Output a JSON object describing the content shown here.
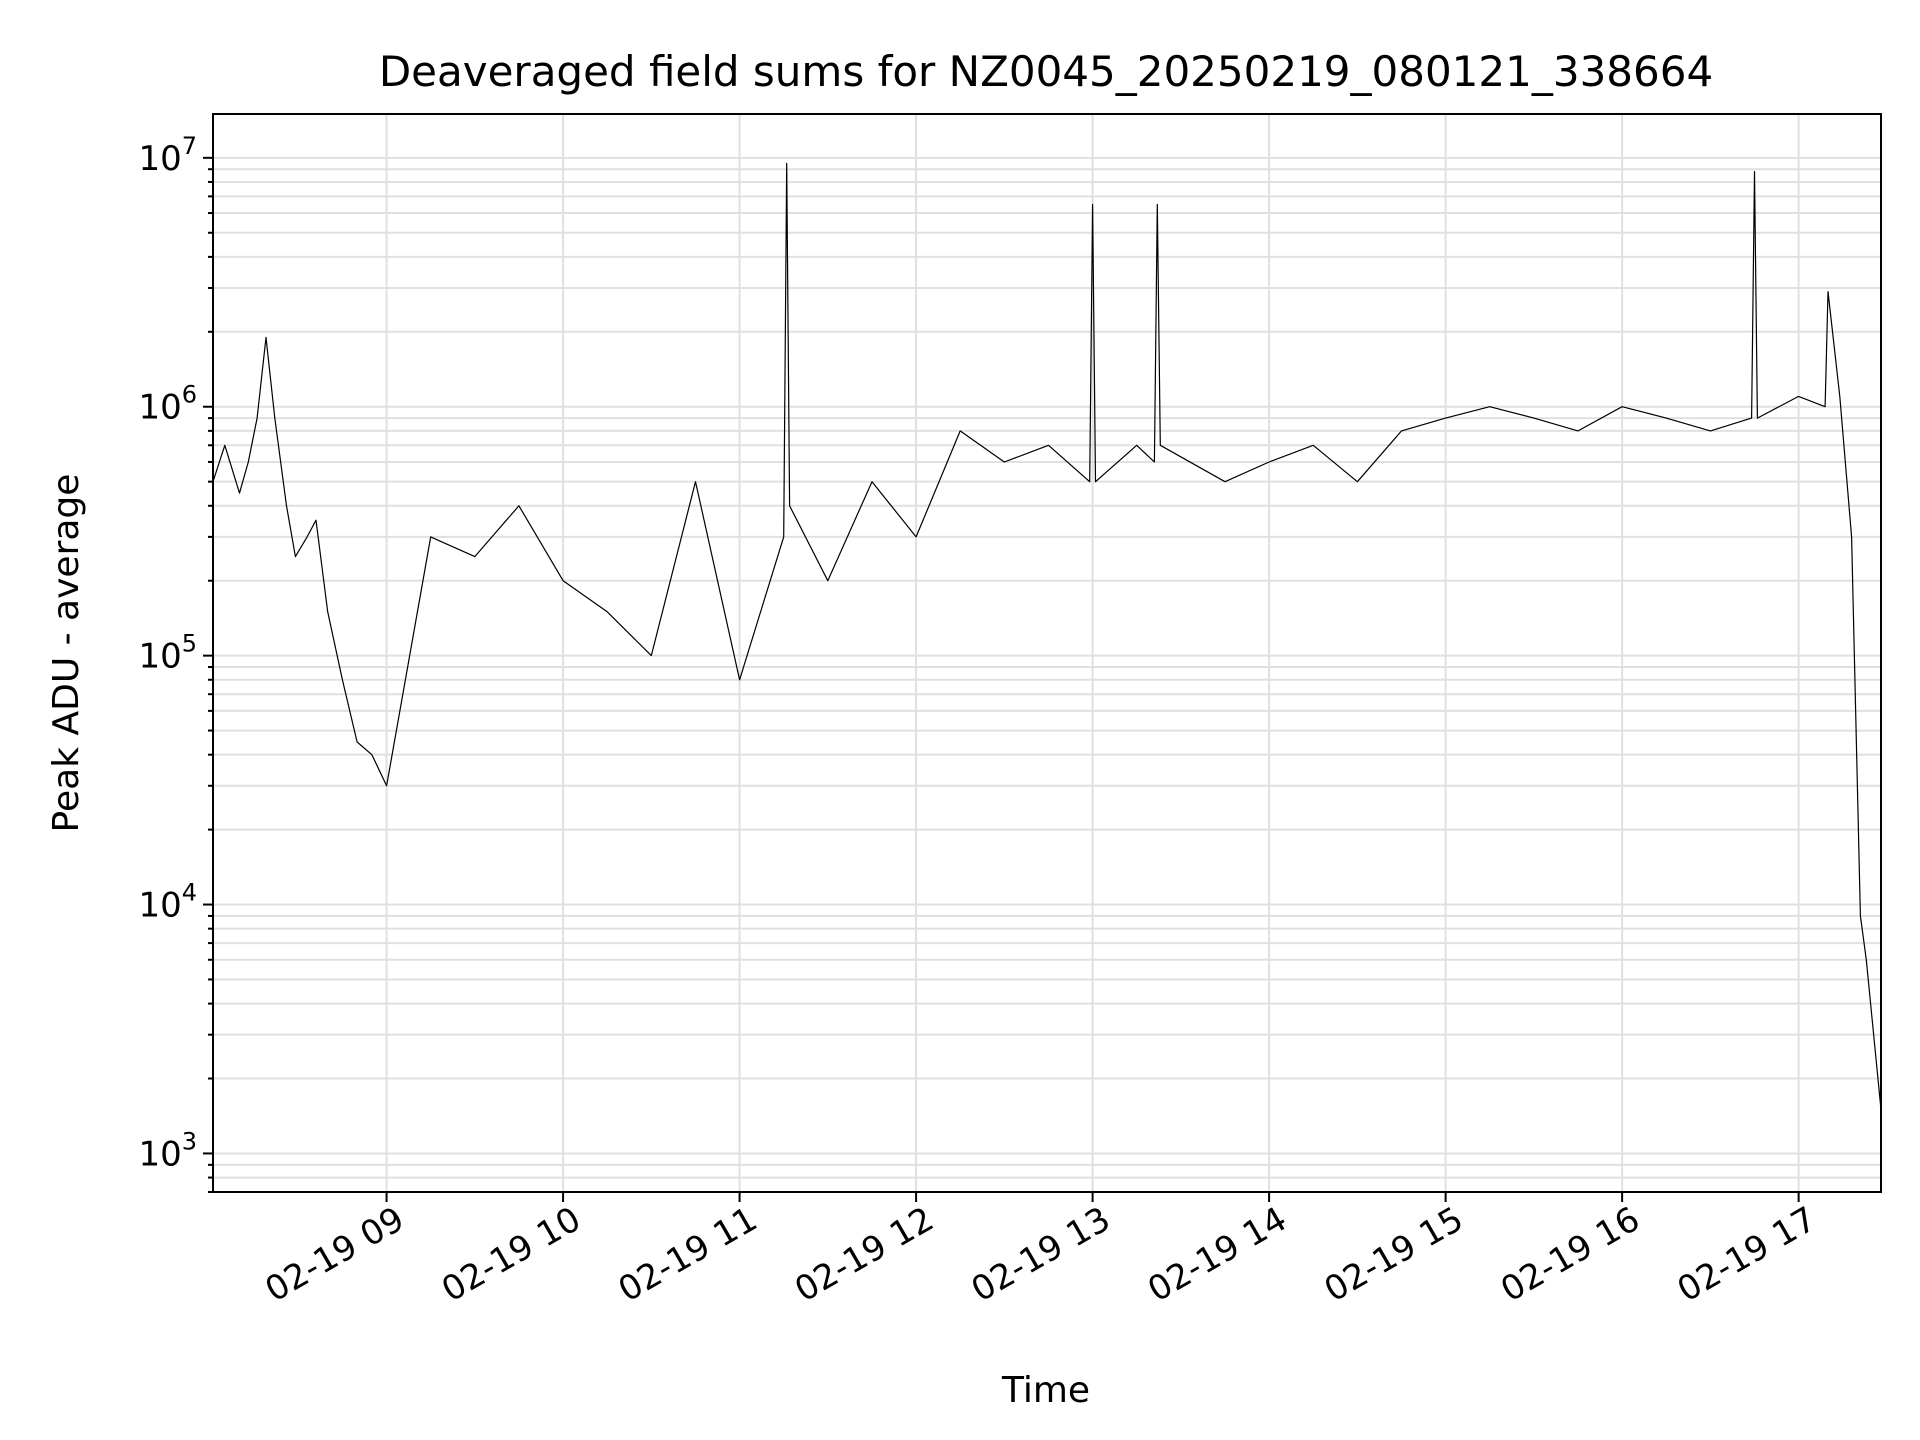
{
  "chart_data": {
    "type": "line",
    "title": "Deaveraged field sums for NZ0045_20250219_080121_338664",
    "xlabel": "Time",
    "ylabel": "Peak ADU - average",
    "yscale": "log",
    "xlim": [
      "02-19 08:01",
      "02-19 17:28"
    ],
    "ylim": [
      700,
      15000000
    ],
    "x_ticks": [
      "02-19 09",
      "02-19 10",
      "02-19 11",
      "02-19 12",
      "02-19 13",
      "02-19 14",
      "02-19 15",
      "02-19 16",
      "02-19 17"
    ],
    "y_ticks": [
      {
        "base": "10",
        "exp": "3",
        "value": 1000
      },
      {
        "base": "10",
        "exp": "4",
        "value": 10000
      },
      {
        "base": "10",
        "exp": "5",
        "value": 100000
      },
      {
        "base": "10",
        "exp": "6",
        "value": 1000000
      },
      {
        "base": "10",
        "exp": "7",
        "value": 10000000
      }
    ],
    "grid": true,
    "series": [
      {
        "color": "#000000",
        "x": [
          "02-19 08:01",
          "02-19 08:05",
          "02-19 08:10",
          "02-19 08:13",
          "02-19 08:16",
          "02-19 08:19",
          "02-19 08:22",
          "02-19 08:26",
          "02-19 08:29",
          "02-19 08:33",
          "02-19 08:36",
          "02-19 08:40",
          "02-19 08:45",
          "02-19 08:50",
          "02-19 08:55",
          "02-19 09:00",
          "02-19 09:15",
          "02-19 09:30",
          "02-19 09:45",
          "02-19 10:00",
          "02-19 10:15",
          "02-19 10:30",
          "02-19 10:45",
          "02-19 11:00",
          "02-19 11:15",
          "02-19 11:16",
          "02-19 11:17",
          "02-19 11:30",
          "02-19 11:45",
          "02-19 12:00",
          "02-19 12:15",
          "02-19 12:30",
          "02-19 12:45",
          "02-19 12:59",
          "02-19 13:00",
          "02-19 13:01",
          "02-19 13:15",
          "02-19 13:21",
          "02-19 13:22",
          "02-19 13:23",
          "02-19 13:45",
          "02-19 14:00",
          "02-19 14:15",
          "02-19 14:30",
          "02-19 14:45",
          "02-19 15:00",
          "02-19 15:15",
          "02-19 15:30",
          "02-19 15:45",
          "02-19 16:00",
          "02-19 16:15",
          "02-19 16:30",
          "02-19 16:44",
          "02-19 16:45",
          "02-19 16:46",
          "02-19 17:00",
          "02-19 17:09",
          "02-19 17:10",
          "02-19 17:14",
          "02-19 17:18",
          "02-19 17:21",
          "02-19 17:23",
          "02-19 17:28"
        ],
        "y": [
          500000,
          700000,
          450000,
          600000,
          900000,
          1900000,
          900000,
          400000,
          250000,
          300000,
          350000,
          150000,
          80000,
          45000,
          40000,
          30000,
          300000,
          250000,
          400000,
          200000,
          150000,
          100000,
          500000,
          80000,
          300000,
          9500000,
          400000,
          200000,
          500000,
          300000,
          800000,
          600000,
          700000,
          500000,
          6500000,
          500000,
          700000,
          600000,
          6500000,
          700000,
          500000,
          600000,
          700000,
          500000,
          800000,
          900000,
          1000000,
          900000,
          800000,
          1000000,
          900000,
          800000,
          900000,
          8800000,
          900000,
          1100000,
          1000000,
          2900000,
          1100000,
          300000,
          9000,
          6000,
          1500
        ]
      }
    ]
  }
}
